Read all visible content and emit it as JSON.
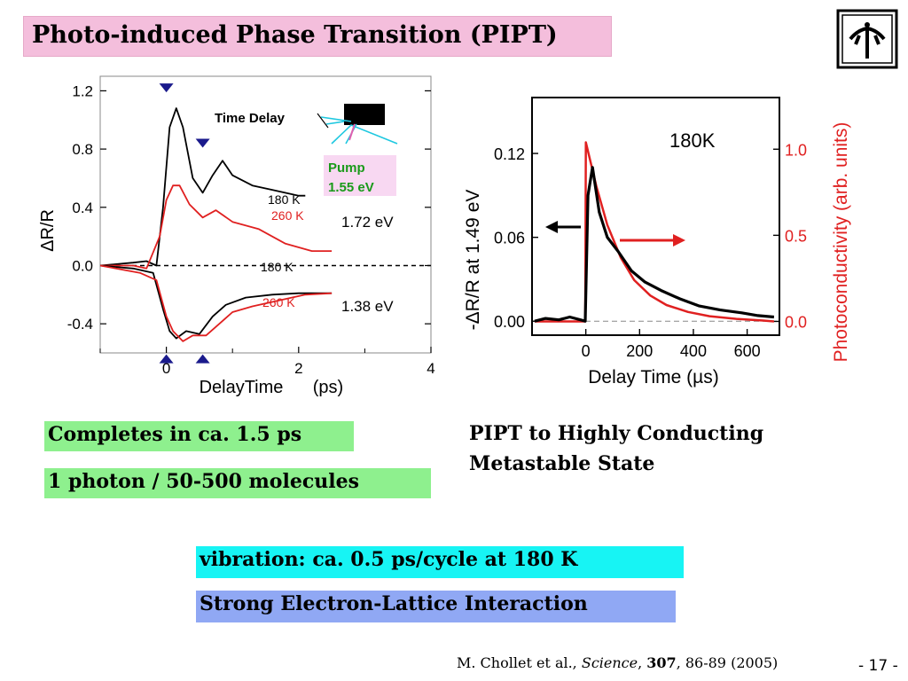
{
  "slide": {
    "title": "Photo-induced Phase Transition (PIPT)",
    "page_number": "- 17 -"
  },
  "left_plot": {
    "ylabel": "ΔR/R",
    "xlabel_main": "DelayTime",
    "xlabel_unit": "(ps)",
    "yticks": [
      "1.2",
      "0.8",
      "0.4",
      "0.0",
      "-0.4"
    ],
    "xticks": [
      "0",
      "2",
      "4"
    ],
    "inset": {
      "time_delay": "Time Delay",
      "pump_line1": "Pump",
      "pump_line2": "1.55 eV"
    },
    "labels": {
      "upper_180": "180  K",
      "upper_260": "260  K",
      "upper_energy": "1.72  eV",
      "lower_180": "180  K",
      "lower_260": "260  K",
      "lower_energy": "1.38  eV"
    },
    "colors": {
      "k180": "#000000",
      "k260": "#e02020",
      "marker": "#1a1a8c"
    }
  },
  "right_plot": {
    "ylabel_left": "-ΔR/R at  1.49 eV",
    "ylabel_right": "Photoconductivity (arb. units)",
    "xlabel": "Delay Time (µs)",
    "temp": "180K",
    "yticks_left": [
      "0.12",
      "0.06",
      "0.00"
    ],
    "yticks_right": [
      "1.0",
      "0.5",
      "0.0"
    ],
    "xticks": [
      "0",
      "200",
      "400",
      "600"
    ],
    "colors": {
      "reflectivity": "#000000",
      "photoconductivity": "#e02020"
    }
  },
  "chart_data": [
    {
      "type": "line",
      "title": "",
      "xlabel": "DelayTime (ps)",
      "ylabel": "ΔR/R",
      "xlim": [
        -1,
        4
      ],
      "ylim": [
        -0.6,
        1.3
      ],
      "series": [
        {
          "name": "180  K",
          "x": [
            -1,
            -0.5,
            -0.3,
            -0.15,
            -0.05,
            0.05,
            0.15,
            0.25,
            0.4,
            0.55,
            0.7,
            0.85,
            1.0,
            1.3,
            1.6,
            2.0,
            2.1
          ],
          "y": [
            0,
            0.02,
            0.03,
            0.0,
            0.4,
            0.95,
            1.08,
            0.95,
            0.6,
            0.5,
            0.62,
            0.72,
            0.62,
            0.55,
            0.52,
            0.48,
            0.48
          ]
        },
        {
          "name": "260  K",
          "x": [
            -1,
            -0.5,
            -0.3,
            -0.1,
            0.0,
            0.1,
            0.2,
            0.35,
            0.55,
            0.75,
            1.0,
            1.4,
            1.8,
            2.2,
            2.5
          ],
          "y": [
            0,
            0.0,
            -0.02,
            0.2,
            0.45,
            0.55,
            0.55,
            0.42,
            0.33,
            0.38,
            0.3,
            0.25,
            0.15,
            0.1,
            0.1
          ]
        },
        {
          "name": "180  K",
          "x": [
            -1,
            -0.5,
            -0.2,
            -0.05,
            0.05,
            0.15,
            0.3,
            0.5,
            0.7,
            0.9,
            1.2,
            1.6,
            2.0,
            2.5
          ],
          "y": [
            0,
            -0.02,
            -0.05,
            -0.3,
            -0.45,
            -0.5,
            -0.45,
            -0.47,
            -0.35,
            -0.27,
            -0.22,
            -0.2,
            -0.19,
            -0.19
          ]
        },
        {
          "name": "260  K",
          "x": [
            -1,
            -0.4,
            -0.15,
            0.0,
            0.1,
            0.25,
            0.4,
            0.6,
            0.8,
            1.0,
            1.3,
            1.7,
            2.1,
            2.5
          ],
          "y": [
            0,
            -0.05,
            -0.1,
            -0.35,
            -0.45,
            -0.52,
            -0.48,
            -0.48,
            -0.4,
            -0.32,
            -0.28,
            -0.24,
            -0.2,
            -0.19
          ]
        }
      ]
    },
    {
      "type": "line",
      "title": "180K",
      "xlabel": "Delay Time (µs)",
      "ylabel": "-ΔR/R at  1.49 eV",
      "xlim": [
        -200,
        720
      ],
      "ylim": [
        -0.01,
        0.16
      ],
      "ylabel_right": "Photoconductivity (arb. units)",
      "ylim_right": [
        -0.08,
        1.3
      ],
      "series": [
        {
          "name": "",
          "x": [
            -190,
            -150,
            -100,
            -60,
            -20,
            -2,
            8,
            25,
            50,
            80,
            120,
            170,
            220,
            280,
            350,
            420,
            500,
            580,
            640,
            700
          ],
          "y": [
            0.0,
            0.002,
            0.001,
            0.003,
            0.001,
            0.0,
            0.09,
            0.11,
            0.078,
            0.06,
            0.05,
            0.036,
            0.028,
            0.022,
            0.016,
            0.011,
            0.008,
            0.006,
            0.004,
            0.003
          ]
        },
        {
          "name": "",
          "x": [
            -190,
            -2,
            0,
            40,
            80,
            130,
            180,
            240,
            300,
            380,
            460,
            560,
            660,
            700
          ],
          "y": [
            0.0,
            0.0,
            1.04,
            0.78,
            0.56,
            0.37,
            0.24,
            0.15,
            0.095,
            0.055,
            0.03,
            0.015,
            0.005,
            0.0
          ]
        }
      ]
    }
  ],
  "notes": {
    "completes": "Completes in ca. 1.5 ps",
    "photon": "1 photon / 50-500 molecules",
    "pipt_line1": "PIPT to Highly Conducting",
    "pipt_line2": "Metastable State",
    "vibration": "vibration: ca. 0.5 ps/cycle at 180 K",
    "electron": "Strong Electron-Lattice Interaction"
  },
  "citation": {
    "authors": "M. Chollet et al., ",
    "journal": "Science",
    "volume": "307",
    "pages": ", 86-89 (2005)",
    "sep": ", "
  }
}
